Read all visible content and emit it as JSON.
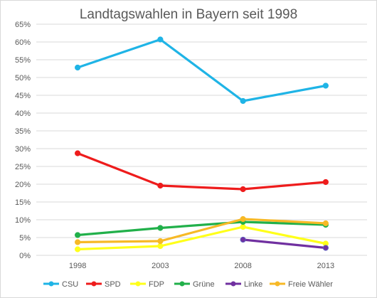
{
  "chart_data": {
    "type": "line",
    "title": "Landtagswahlen in Bayern seit 1998",
    "xlabel": "",
    "ylabel": "",
    "categories": [
      "1998",
      "2003",
      "2008",
      "2013"
    ],
    "ylim": [
      0,
      65
    ],
    "yticks": [
      0,
      5,
      10,
      15,
      20,
      25,
      30,
      35,
      40,
      45,
      50,
      55,
      60,
      65
    ],
    "ytick_labels": [
      "0%",
      "5%",
      "10%",
      "15%",
      "20%",
      "25%",
      "30%",
      "35%",
      "40%",
      "45%",
      "50%",
      "55%",
      "60%",
      "65%"
    ],
    "grid": true,
    "legend_position": "bottom",
    "series": [
      {
        "name": "CSU",
        "color": "#1fb4e6",
        "values": [
          52.8,
          60.7,
          43.4,
          47.7
        ]
      },
      {
        "name": "SPD",
        "color": "#ee1c1c",
        "values": [
          28.7,
          19.6,
          18.6,
          20.6
        ]
      },
      {
        "name": "FDP",
        "color": "#ffff1a",
        "values": [
          1.7,
          2.6,
          8.0,
          3.3
        ]
      },
      {
        "name": "Grüne",
        "color": "#21b04a",
        "values": [
          5.7,
          7.7,
          9.4,
          8.6
        ]
      },
      {
        "name": "Linke",
        "color": "#7030a0",
        "values": [
          null,
          null,
          4.4,
          2.1
        ]
      },
      {
        "name": "Freie Wähler",
        "color": "#f7b926",
        "values": [
          3.7,
          4.0,
          10.2,
          9.0
        ]
      }
    ]
  }
}
